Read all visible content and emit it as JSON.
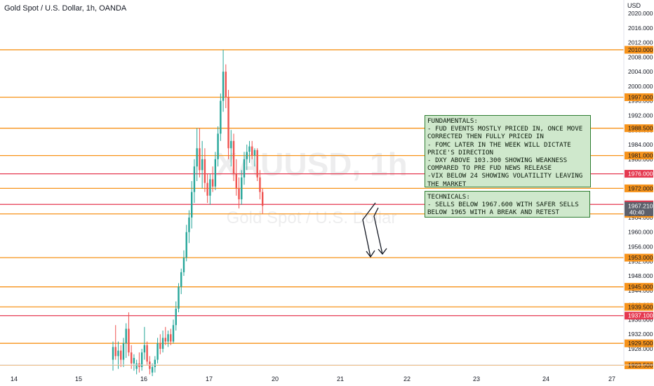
{
  "header": {
    "symbol_title": "Gold Spot / U.S. Dollar, 1h, OANDA",
    "currency": "USD"
  },
  "watermark": {
    "symbol": "XAUUSD, 1h",
    "description": "Gold Spot / U.S. Dollar"
  },
  "chart_data": {
    "type": "candlestick",
    "symbol": "Gold Spot / U.S. Dollar, 1h, OANDA",
    "y_axis": {
      "range": [
        1920,
        2020
      ],
      "tick_labels": [
        "2020.000",
        "2016.000",
        "2012.000",
        "2008.000",
        "2004.000",
        "2000.000",
        "1996.000",
        "1992.000",
        "1988.000",
        "1984.000",
        "1980.000",
        "1976.000",
        "1972.000",
        "1968.000",
        "1964.000",
        "1960.000",
        "1956.000",
        "1952.000",
        "1948.000",
        "1944.000",
        "1940.000",
        "1936.000",
        "1932.000",
        "1928.000"
      ],
      "tick_values": [
        2020,
        2016,
        2012,
        2008,
        2004,
        2000,
        1996,
        1992,
        1988,
        1984,
        1980,
        1976,
        1972,
        1968,
        1964,
        1960,
        1956,
        1952,
        1948,
        1944,
        1940,
        1936,
        1932,
        1928
      ]
    },
    "x_axis": {
      "tick_labels": [
        "14",
        "15",
        "16",
        "17",
        "20",
        "21",
        "22",
        "23",
        "24",
        "27"
      ]
    },
    "horizontal_levels": [
      {
        "value": 2010.0,
        "label": "2010.000",
        "color": "#f7931a"
      },
      {
        "value": 1997.0,
        "label": "1997.000",
        "color": "#f7931a"
      },
      {
        "value": 1988.5,
        "label": "1988.500",
        "color": "#f7931a"
      },
      {
        "value": 1981.0,
        "label": "1981.000",
        "color": "#f7931a"
      },
      {
        "value": 1976.0,
        "label": "1976.000",
        "color": "#e53950"
      },
      {
        "value": 1972.0,
        "label": "1972.000",
        "color": "#f7931a"
      },
      {
        "value": 1967.6,
        "label": "1967.600",
        "color": "#e53950"
      },
      {
        "value": 1965.0,
        "label": "1965.000",
        "color": "#f7931a"
      },
      {
        "value": 1953.0,
        "label": "1953.000",
        "color": "#f7931a"
      },
      {
        "value": 1945.0,
        "label": "1945.000",
        "color": "#f7931a"
      },
      {
        "value": 1939.5,
        "label": "1939.500",
        "color": "#f7931a"
      },
      {
        "value": 1937.1,
        "label": "1937.100",
        "color": "#e53950"
      },
      {
        "value": 1929.5,
        "label": "1929.500",
        "color": "#f7931a"
      },
      {
        "value": 1923.5,
        "label": "1923.500",
        "color": "#f7931a"
      }
    ],
    "current_price": {
      "value": 1967.21,
      "label": "1967.210",
      "countdown": "40:40",
      "color": "#5d606b"
    },
    "candles": [
      {
        "day": "16",
        "o": 1925.0,
        "h": 1930.0,
        "l": 1922.0,
        "c": 1928.5
      },
      {
        "day": "16",
        "o": 1928.5,
        "h": 1934.5,
        "l": 1925.0,
        "c": 1926.0
      },
      {
        "day": "16",
        "o": 1926.0,
        "h": 1930.0,
        "l": 1922.5,
        "c": 1927.5
      },
      {
        "day": "16",
        "o": 1927.5,
        "h": 1929.0,
        "l": 1923.0,
        "c": 1925.0
      },
      {
        "day": "16",
        "o": 1925.0,
        "h": 1931.0,
        "l": 1923.0,
        "c": 1929.5
      },
      {
        "day": "16",
        "o": 1929.5,
        "h": 1935.0,
        "l": 1925.5,
        "c": 1933.5
      },
      {
        "day": "16",
        "o": 1933.5,
        "h": 1938.0,
        "l": 1926.0,
        "c": 1927.0
      },
      {
        "day": "16",
        "o": 1927.0,
        "h": 1929.0,
        "l": 1922.5,
        "c": 1924.0
      },
      {
        "day": "16",
        "o": 1924.0,
        "h": 1926.5,
        "l": 1922.0,
        "c": 1925.5
      },
      {
        "day": "17",
        "o": 1922.5,
        "h": 1925.0,
        "l": 1921.0,
        "c": 1924.0
      },
      {
        "day": "17",
        "o": 1924.0,
        "h": 1927.0,
        "l": 1921.5,
        "c": 1923.0
      },
      {
        "day": "17",
        "o": 1923.0,
        "h": 1928.0,
        "l": 1922.0,
        "c": 1927.0
      },
      {
        "day": "17",
        "o": 1927.0,
        "h": 1934.0,
        "l": 1925.0,
        "c": 1929.0
      },
      {
        "day": "17",
        "o": 1929.0,
        "h": 1930.0,
        "l": 1923.5,
        "c": 1924.5
      },
      {
        "day": "17",
        "o": 1924.5,
        "h": 1926.0,
        "l": 1921.0,
        "c": 1922.5
      },
      {
        "day": "17",
        "o": 1921.5,
        "h": 1924.0,
        "l": 1920.5,
        "c": 1923.0
      },
      {
        "day": "17",
        "o": 1923.0,
        "h": 1926.0,
        "l": 1921.5,
        "c": 1925.0
      },
      {
        "day": "17",
        "o": 1925.0,
        "h": 1931.0,
        "l": 1924.0,
        "c": 1929.5
      },
      {
        "day": "17",
        "o": 1929.5,
        "h": 1932.0,
        "l": 1926.5,
        "c": 1928.0
      },
      {
        "day": "17",
        "o": 1928.0,
        "h": 1933.0,
        "l": 1927.0,
        "c": 1931.0
      },
      {
        "day": "17",
        "o": 1931.0,
        "h": 1934.0,
        "l": 1929.0,
        "c": 1930.0
      },
      {
        "day": "17",
        "o": 1930.0,
        "h": 1933.0,
        "l": 1928.5,
        "c": 1932.0
      },
      {
        "day": "17",
        "o": 1932.0,
        "h": 1933.5,
        "l": 1929.0,
        "c": 1930.0
      },
      {
        "day": "17",
        "o": 1930.0,
        "h": 1936.0,
        "l": 1929.5,
        "c": 1934.5
      },
      {
        "day": "17",
        "o": 1934.5,
        "h": 1941.0,
        "l": 1933.0,
        "c": 1939.0
      },
      {
        "day": "17",
        "o": 1939.0,
        "h": 1946.0,
        "l": 1938.0,
        "c": 1945.0
      },
      {
        "day": "17",
        "o": 1945.0,
        "h": 1950.0,
        "l": 1943.0,
        "c": 1949.0
      },
      {
        "day": "17",
        "o": 1949.0,
        "h": 1955.0,
        "l": 1948.0,
        "c": 1953.0
      },
      {
        "day": "17",
        "o": 1953.0,
        "h": 1962.0,
        "l": 1952.0,
        "c": 1960.0
      },
      {
        "day": "17",
        "o": 1960.0,
        "h": 1966.0,
        "l": 1957.0,
        "c": 1964.0
      },
      {
        "day": "17",
        "o": 1964.0,
        "h": 1974.0,
        "l": 1961.0,
        "c": 1971.0
      },
      {
        "day": "17",
        "o": 1971.0,
        "h": 1980.0,
        "l": 1968.0,
        "c": 1978.0
      },
      {
        "day": "20",
        "o": 1978.0,
        "h": 1988.5,
        "l": 1974.0,
        "c": 1983.0
      },
      {
        "day": "20",
        "o": 1983.0,
        "h": 1988.5,
        "l": 1975.0,
        "c": 1977.0
      },
      {
        "day": "20",
        "o": 1977.0,
        "h": 1985.0,
        "l": 1972.0,
        "c": 1980.0
      },
      {
        "day": "20",
        "o": 1980.0,
        "h": 1983.0,
        "l": 1971.0,
        "c": 1973.5
      },
      {
        "day": "20",
        "o": 1973.5,
        "h": 1976.0,
        "l": 1968.0,
        "c": 1970.0
      },
      {
        "day": "20",
        "o": 1970.0,
        "h": 1976.0,
        "l": 1967.5,
        "c": 1974.5
      },
      {
        "day": "20",
        "o": 1974.5,
        "h": 1978.0,
        "l": 1971.0,
        "c": 1972.5
      },
      {
        "day": "20",
        "o": 1972.5,
        "h": 1982.0,
        "l": 1971.5,
        "c": 1980.0
      },
      {
        "day": "20",
        "o": 1980.0,
        "h": 1989.0,
        "l": 1978.0,
        "c": 1987.0
      },
      {
        "day": "20",
        "o": 1987.0,
        "h": 1998.0,
        "l": 1985.0,
        "c": 1996.0
      },
      {
        "day": "20",
        "o": 1996.0,
        "h": 2010.0,
        "l": 1993.0,
        "c": 2004.0
      },
      {
        "day": "20",
        "o": 2004.0,
        "h": 2006.0,
        "l": 1994.0,
        "c": 1997.0
      },
      {
        "day": "20",
        "o": 1997.0,
        "h": 1999.0,
        "l": 1980.0,
        "c": 1983.0
      },
      {
        "day": "20",
        "o": 1983.0,
        "h": 1988.0,
        "l": 1978.0,
        "c": 1985.0
      },
      {
        "day": "20",
        "o": 1985.0,
        "h": 1987.0,
        "l": 1974.0,
        "c": 1976.0
      },
      {
        "day": "20",
        "o": 1976.0,
        "h": 1980.0,
        "l": 1970.0,
        "c": 1972.0
      },
      {
        "day": "20",
        "o": 1972.0,
        "h": 1975.0,
        "l": 1966.5,
        "c": 1969.0
      },
      {
        "day": "20",
        "o": 1969.0,
        "h": 1977.0,
        "l": 1967.5,
        "c": 1975.0
      },
      {
        "day": "21",
        "o": 1975.0,
        "h": 1982.0,
        "l": 1973.0,
        "c": 1980.0
      },
      {
        "day": "21",
        "o": 1980.0,
        "h": 1984.0,
        "l": 1977.0,
        "c": 1982.0
      },
      {
        "day": "21",
        "o": 1982.0,
        "h": 1985.0,
        "l": 1979.0,
        "c": 1983.5
      },
      {
        "day": "21",
        "o": 1983.5,
        "h": 1985.0,
        "l": 1980.0,
        "c": 1981.0
      },
      {
        "day": "21",
        "o": 1981.0,
        "h": 1983.0,
        "l": 1978.0,
        "c": 1982.5
      },
      {
        "day": "21",
        "o": 1982.5,
        "h": 1983.0,
        "l": 1974.0,
        "c": 1975.0
      },
      {
        "day": "21",
        "o": 1975.0,
        "h": 1977.0,
        "l": 1969.0,
        "c": 1971.0
      },
      {
        "day": "21",
        "o": 1971.0,
        "h": 1972.0,
        "l": 1965.0,
        "c": 1967.2
      }
    ],
    "annotations": [
      {
        "kind": "arrow",
        "direction": "down"
      },
      {
        "kind": "arrow",
        "direction": "down"
      }
    ]
  },
  "notes": {
    "fundamentals": "FUNDAMENTALS:\n- FUD EVENTS MOSTLY PRICED IN, ONCE MOVE CORRECTED THEN FULLY PRICED IN\n- FOMC LATER IN THE WEEK WILL DICTATE PRICE'S DIRECTION\n- DXY ABOVE 103.300 SHOWING WEAKNESS COMPARED TO PRE FUD NEWS RELEASE\n-VIX BELOW 24 SHOWING VOLATILITY LEAVING THE MARKET",
    "technicals": "TECHNICALS:\n- SELLS BELOW 1967.600 WITH SAFER SELLS BELOW 1965 WITH A BREAK AND RETEST"
  },
  "colors": {
    "up": "#26a69a",
    "down": "#ef5350",
    "orange_level": "#f7931a",
    "red_level": "#e53950",
    "note_bg": "#cfe8cc",
    "note_border": "#2f7d32"
  }
}
